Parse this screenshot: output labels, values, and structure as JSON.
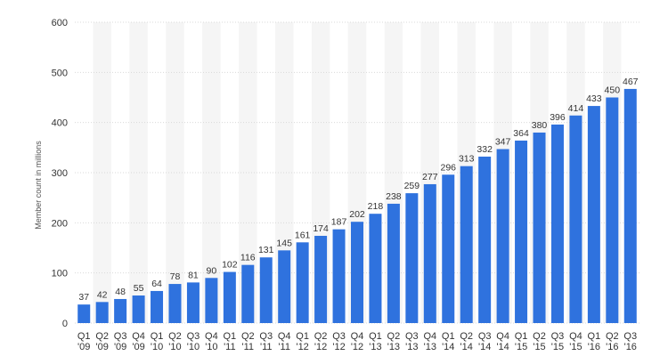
{
  "chart_data": {
    "type": "bar",
    "title": "",
    "ylabel": "Member count in millions",
    "xlabel": "",
    "ylim": [
      0,
      600
    ],
    "yticks": [
      0,
      100,
      200,
      300,
      400,
      500,
      600
    ],
    "grid": true,
    "legend": "none",
    "bar_color": "#2f72de",
    "band_color": "#f5f5f5",
    "categories": [
      "Q1 '09",
      "Q2 '09",
      "Q3 '09",
      "Q4 '09",
      "Q1 '10",
      "Q2 '10",
      "Q3 '10",
      "Q4 '10",
      "Q1 '11",
      "Q2 '11",
      "Q3 '11",
      "Q4 '11",
      "Q1 '12",
      "Q2 '12",
      "Q3 '12",
      "Q4 '12",
      "Q1 '13",
      "Q2 '13",
      "Q3 '13",
      "Q4 '13",
      "Q1 '14",
      "Q2 '14",
      "Q3 '14",
      "Q4 '14",
      "Q1 '15",
      "Q2 '15",
      "Q3 '15",
      "Q4 '15",
      "Q1 '16",
      "Q2 '16",
      "Q3 '16"
    ],
    "values": [
      37,
      42,
      48,
      55,
      64,
      78,
      81,
      90,
      102,
      116,
      131,
      145,
      161,
      174,
      187,
      202,
      218,
      238,
      259,
      277,
      296,
      313,
      332,
      347,
      364,
      380,
      396,
      414,
      433,
      450,
      467
    ]
  }
}
